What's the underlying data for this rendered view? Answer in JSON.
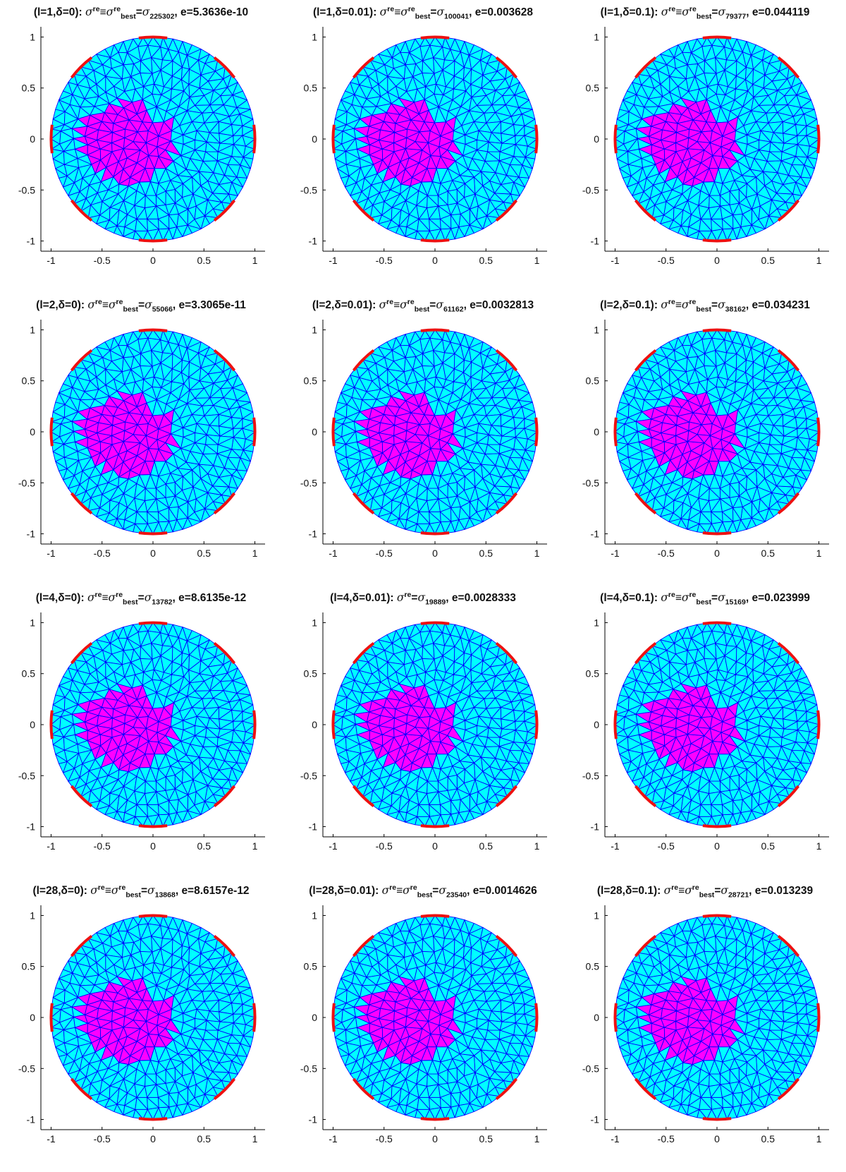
{
  "colors": {
    "background_fill": "#00ffff",
    "inclusion_fill": "#ff00ff",
    "mesh_edges": "#0000ff",
    "electrodes": "#ee1111",
    "axis": "#000000"
  },
  "panels": [
    {
      "l": "1",
      "delta": "0",
      "relation": "≡",
      "best": true,
      "sigma_index": "225302",
      "e": "5.3636e-10"
    },
    {
      "l": "1",
      "delta": "0.01",
      "relation": "≡",
      "best": true,
      "sigma_index": "100041",
      "e": "0.003628"
    },
    {
      "l": "1",
      "delta": "0.1",
      "relation": "≡",
      "best": true,
      "sigma_index": "79377",
      "e": "0.044119"
    },
    {
      "l": "2",
      "delta": "0",
      "relation": "≡",
      "best": true,
      "sigma_index": "55066",
      "e": "3.3065e-11"
    },
    {
      "l": "2",
      "delta": "0.01",
      "relation": "≡",
      "best": true,
      "sigma_index": "61162",
      "e": "0.0032813"
    },
    {
      "l": "2",
      "delta": "0.1",
      "relation": "≡",
      "best": true,
      "sigma_index": "38162",
      "e": "0.034231"
    },
    {
      "l": "4",
      "delta": "0",
      "relation": "≡",
      "best": true,
      "sigma_index": "13782",
      "e": "8.6135e-12"
    },
    {
      "l": "4",
      "delta": "0.01",
      "relation": "",
      "best": false,
      "sigma_index": "19889",
      "e": "0.0028333"
    },
    {
      "l": "4",
      "delta": "0.1",
      "relation": "≡",
      "best": true,
      "sigma_index": "15169",
      "e": "0.023999"
    },
    {
      "l": "28",
      "delta": "0",
      "relation": "≡",
      "best": true,
      "sigma_index": "13868",
      "e": "8.6157e-12"
    },
    {
      "l": "28",
      "delta": "0.01",
      "relation": "≡",
      "best": true,
      "sigma_index": "23540",
      "e": "0.0014626"
    },
    {
      "l": "28",
      "delta": "0.1",
      "relation": "≡",
      "best": true,
      "sigma_index": "28721",
      "e": "0.013239"
    }
  ],
  "title_parts": {
    "l_label": "l=",
    "delta_label": "δ=",
    "sigma": "σ",
    "re": "re",
    "best": "best",
    "e_label": "e="
  },
  "axes": {
    "x_ticks": [
      "-1",
      "-0.5",
      "0",
      "0.5",
      "1"
    ],
    "y_ticks": [
      "1",
      "0.5",
      "0",
      "-0.5",
      "-1"
    ],
    "xlim": [
      -1.1,
      1.1
    ],
    "ylim": [
      -1.1,
      1.1
    ]
  },
  "electrodes": {
    "count": 8,
    "center_angles_deg": [
      90,
      45,
      0,
      -45,
      -90,
      -135,
      180,
      135
    ],
    "arc_width_deg": 16
  },
  "inclusion_polygon": [
    [
      -0.58,
      0.26
    ],
    [
      -0.36,
      0.34
    ],
    [
      -0.24,
      0.38
    ],
    [
      -0.12,
      0.34
    ],
    [
      -0.02,
      0.22
    ],
    [
      0.18,
      0.16
    ],
    [
      0.2,
      -0.1
    ],
    [
      0.1,
      -0.3
    ],
    [
      -0.1,
      -0.44
    ],
    [
      -0.28,
      -0.46
    ],
    [
      -0.48,
      -0.36
    ],
    [
      -0.66,
      -0.16
    ],
    [
      -0.74,
      0.02
    ],
    [
      -0.7,
      0.2
    ]
  ]
}
